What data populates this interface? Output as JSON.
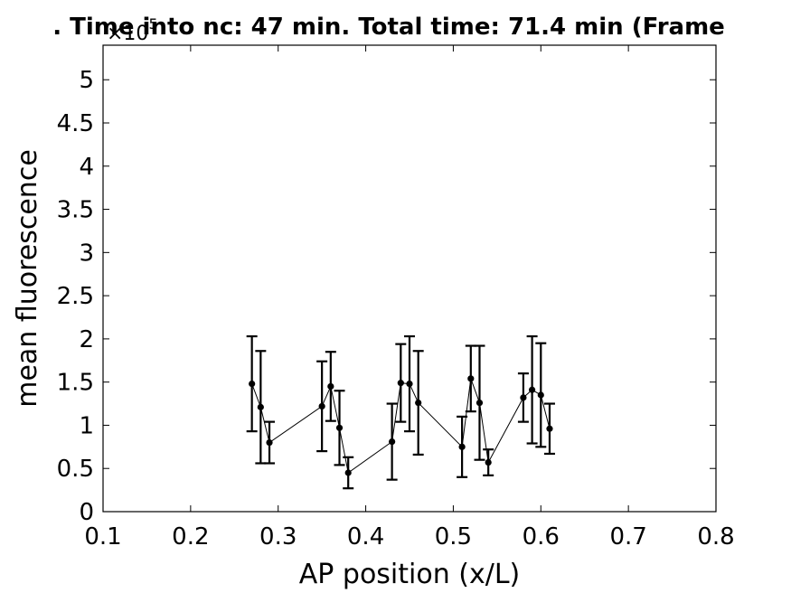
{
  "chart_data": {
    "type": "line",
    "title": ". Time into nc: 47 min. Total time: 71.4 min (Frame",
    "xlabel": "AP position (x/L)",
    "ylabel": "mean fluorescence",
    "y_exponent_base": "×10",
    "y_exponent_power": "5",
    "xlim": [
      0.1,
      0.8
    ],
    "ylim": [
      0,
      5.4
    ],
    "x_ticks": [
      "0.1",
      "0.2",
      "0.3",
      "0.4",
      "0.5",
      "0.6",
      "0.7",
      "0.8"
    ],
    "y_ticks": [
      "0",
      "0.5",
      "1",
      "1.5",
      "2",
      "2.5",
      "3",
      "3.5",
      "4",
      "4.5",
      "5"
    ],
    "grid": false,
    "series": [
      {
        "points": [
          {
            "x": 0.27,
            "y": 1.48,
            "err_low": 0.55,
            "err_high": 0.55
          },
          {
            "x": 0.28,
            "y": 1.21,
            "err_low": 0.65,
            "err_high": 0.65
          },
          {
            "x": 0.29,
            "y": 0.8,
            "err_low": 0.24,
            "err_high": 0.24
          },
          {
            "x": 0.35,
            "y": 1.22,
            "err_low": 0.52,
            "err_high": 0.52
          },
          {
            "x": 0.36,
            "y": 1.45,
            "err_low": 0.4,
            "err_high": 0.4
          },
          {
            "x": 0.37,
            "y": 0.97,
            "err_low": 0.43,
            "err_high": 0.43
          },
          {
            "x": 0.38,
            "y": 0.45,
            "err_low": 0.18,
            "err_high": 0.18
          },
          {
            "x": 0.43,
            "y": 0.81,
            "err_low": 0.44,
            "err_high": 0.44
          },
          {
            "x": 0.44,
            "y": 1.49,
            "err_low": 0.45,
            "err_high": 0.45
          },
          {
            "x": 0.45,
            "y": 1.48,
            "err_low": 0.55,
            "err_high": 0.55
          },
          {
            "x": 0.46,
            "y": 1.26,
            "err_low": 0.6,
            "err_high": 0.6
          },
          {
            "x": 0.51,
            "y": 0.75,
            "err_low": 0.35,
            "err_high": 0.35
          },
          {
            "x": 0.52,
            "y": 1.54,
            "err_low": 0.38,
            "err_high": 0.38
          },
          {
            "x": 0.53,
            "y": 1.26,
            "err_low": 0.66,
            "err_high": 0.66
          },
          {
            "x": 0.54,
            "y": 0.57,
            "err_low": 0.15,
            "err_high": 0.15
          },
          {
            "x": 0.58,
            "y": 1.32,
            "err_low": 0.28,
            "err_high": 0.28
          },
          {
            "x": 0.59,
            "y": 1.41,
            "err_low": 0.62,
            "err_high": 0.62
          },
          {
            "x": 0.6,
            "y": 1.35,
            "err_low": 0.6,
            "err_high": 0.6
          },
          {
            "x": 0.61,
            "y": 0.96,
            "err_low": 0.29,
            "err_high": 0.29
          }
        ]
      }
    ]
  }
}
